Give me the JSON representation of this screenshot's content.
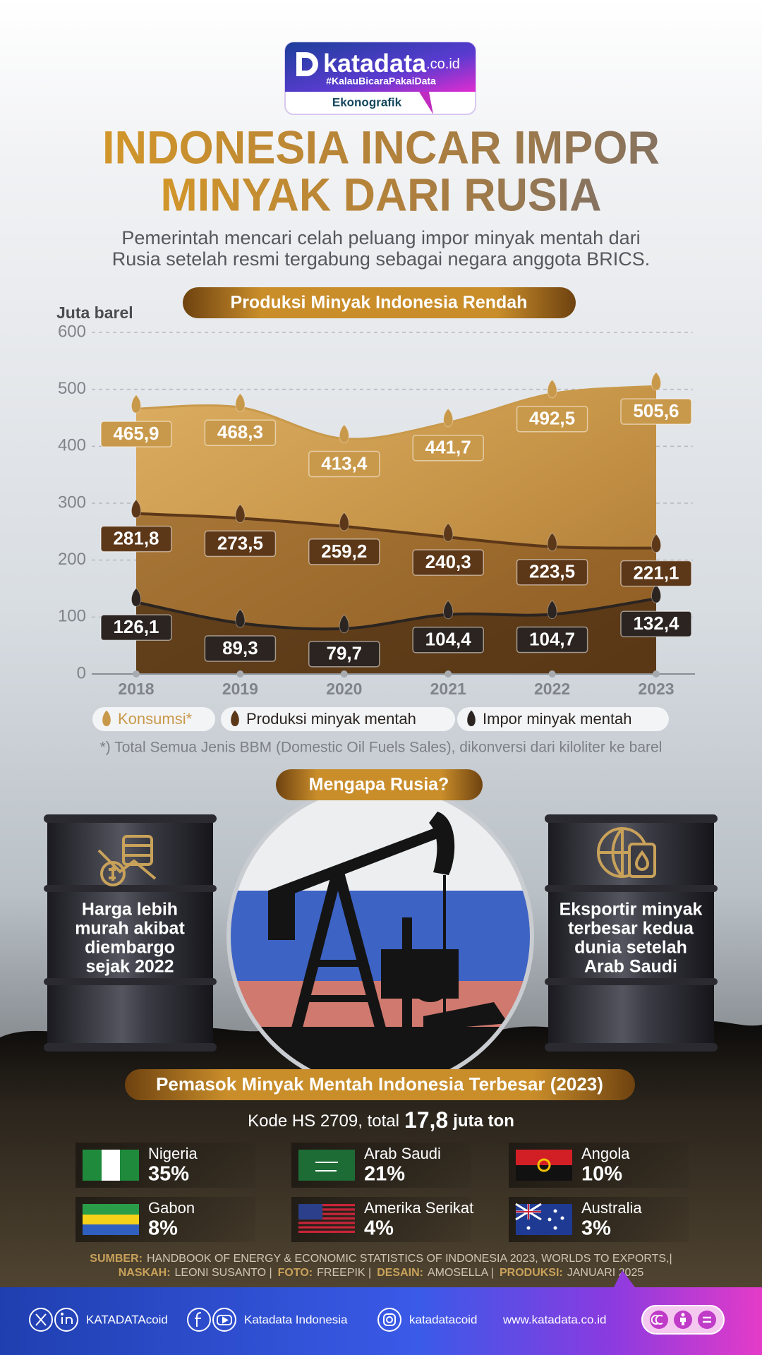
{
  "header": {
    "brand": "katadata",
    "domain": ".co.id",
    "tagline": "#KalauBicaraPakaiData",
    "section": "Ekonografik"
  },
  "title": [
    "INDONESIA INCAR IMPOR",
    "MINYAK DARI RUSIA"
  ],
  "subtitle": [
    "Pemerintah mencari celah peluang impor minyak mentah dari",
    "Rusia setelah resmi tergabung sebagai negara anggota BRICS."
  ],
  "chart_data": {
    "type": "area",
    "title": "Produksi Minyak Indonesia Rendah",
    "y_label": "Juta barel",
    "categories": [
      "2018",
      "2019",
      "2020",
      "2021",
      "2022",
      "2023"
    ],
    "series": [
      {
        "name": "Konsumsi*",
        "color": "#c9994b",
        "values": [
          465.9,
          468.3,
          413.4,
          441.7,
          492.5,
          505.6
        ],
        "value_labels": [
          "465,9",
          "468,3",
          "413,4",
          "441,7",
          "492,5",
          "505,6"
        ]
      },
      {
        "name": "Produksi minyak mentah",
        "color": "#5c3718",
        "values": [
          281.8,
          273.5,
          259.2,
          240.3,
          223.5,
          221.1
        ],
        "value_labels": [
          "281,8",
          "273,5",
          "259,2",
          "240,3",
          "223,5",
          "221,1"
        ]
      },
      {
        "name": "Impor minyak mentah",
        "color": "#2b2420",
        "values": [
          126.1,
          89.3,
          79.7,
          104.4,
          104.7,
          132.4
        ],
        "value_labels": [
          "126,1",
          "89,3",
          "79,7",
          "104,4",
          "104,7",
          "132,4"
        ]
      }
    ],
    "ylim": [
      0,
      600
    ],
    "yticks": [
      0,
      100,
      200,
      300,
      400,
      500,
      600
    ],
    "grid": true,
    "note": "*) Total Semua Jenis BBM (Domestic Oil Fuels Sales), dikonversi dari kiloliter ke barel"
  },
  "why": {
    "title": "Mengapa Rusia?",
    "left": [
      "Harga lebih",
      "murah akibat",
      "diembargo",
      "sejak 2022"
    ],
    "right": [
      "Eksportir minyak",
      "terbesar kedua",
      "dunia setelah",
      "Arab Saudi"
    ]
  },
  "suppliers": {
    "title": "Pemasok Minyak Mentah Indonesia Terbesar (2023)",
    "summary": [
      "Kode HS 2709, total",
      "17,8",
      "juta ton"
    ],
    "items": [
      {
        "country": "Nigeria",
        "share": "35%"
      },
      {
        "country": "Arab Saudi",
        "share": "21%"
      },
      {
        "country": "Angola",
        "share": "10%"
      },
      {
        "country": "Gabon",
        "share": "8%"
      },
      {
        "country": "Amerika Serikat",
        "share": "4%"
      },
      {
        "country": "Australia",
        "share": "3%"
      }
    ]
  },
  "source": {
    "lines": [
      [
        {
          "label": "SUMBER:",
          "text": "HANDBOOK OF ENERGY & ECONOMIC STATISTICS OF INDONESIA 2023, WORLDS TO EXPORTS,|"
        }
      ],
      [
        {
          "label": "NASKAH:",
          "text": "LEONI SUSANTO |"
        },
        {
          "label": "FOTO:",
          "text": "FREEPIK |"
        },
        {
          "label": "DESAIN:",
          "text": "AMOSELLA |"
        },
        {
          "label": "PRODUKSI:",
          "text": "JANUARI 2025"
        }
      ]
    ]
  },
  "footer": {
    "x": "KATADATAcoid",
    "facebook": "Katadata Indonesia",
    "instagram": "katadatacoid",
    "web": "www.katadata.co.id"
  }
}
